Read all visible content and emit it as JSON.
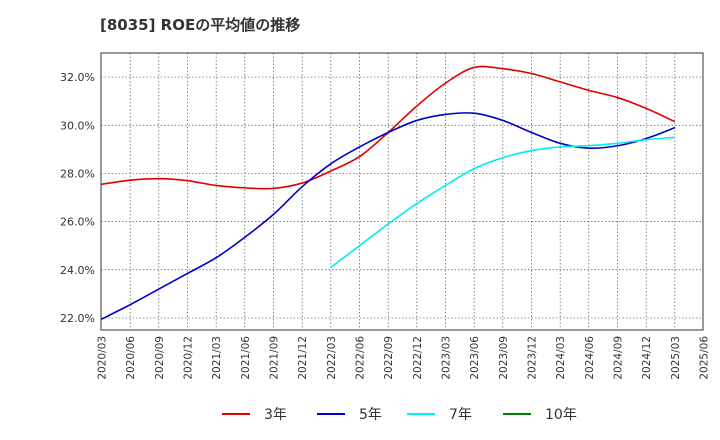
{
  "chart_data": {
    "type": "line",
    "title": "[8035]  ROEの平均値の推移",
    "ylim": [
      21.5,
      33.0
    ],
    "y_ticks": [
      22.0,
      24.0,
      26.0,
      28.0,
      30.0,
      32.0
    ],
    "y_tick_labels": [
      "22.0%",
      "24.0%",
      "26.0%",
      "28.0%",
      "30.0%",
      "32.0%"
    ],
    "x_tick_labels": [
      "2020/03",
      "2020/06",
      "2020/09",
      "2020/12",
      "2021/03",
      "2021/06",
      "2021/09",
      "2021/12",
      "2022/03",
      "2022/06",
      "2022/09",
      "2022/12",
      "2023/03",
      "2023/06",
      "2023/09",
      "2023/12",
      "2024/03",
      "2024/06",
      "2024/09",
      "2024/12",
      "2025/03",
      "2025/06"
    ],
    "grid": true,
    "legend_position": "bottom",
    "series": [
      {
        "name": "3年",
        "color": "#e00000",
        "start_index": 0,
        "values": [
          27.55,
          27.72,
          27.78,
          27.7,
          27.5,
          27.4,
          27.38,
          27.6,
          28.1,
          28.7,
          29.7,
          30.8,
          31.75,
          32.4,
          32.35,
          32.15,
          31.8,
          31.45,
          31.15,
          30.7,
          30.15
        ]
      },
      {
        "name": "5年",
        "color": "#0000cc",
        "start_index": 0,
        "values": [
          21.95,
          22.55,
          23.2,
          23.85,
          24.5,
          25.35,
          26.3,
          27.45,
          28.4,
          29.1,
          29.7,
          30.2,
          30.45,
          30.5,
          30.2,
          29.7,
          29.25,
          29.05,
          29.15,
          29.45,
          29.9
        ]
      },
      {
        "name": "7年",
        "color": "#00eeee",
        "start_index": 8,
        "values": [
          24.1,
          25.0,
          25.9,
          26.75,
          27.5,
          28.2,
          28.65,
          28.95,
          29.1,
          29.15,
          29.25,
          29.4,
          29.5
        ]
      },
      {
        "name": "10年",
        "color": "#008000",
        "start_index": 0,
        "values": []
      }
    ]
  }
}
